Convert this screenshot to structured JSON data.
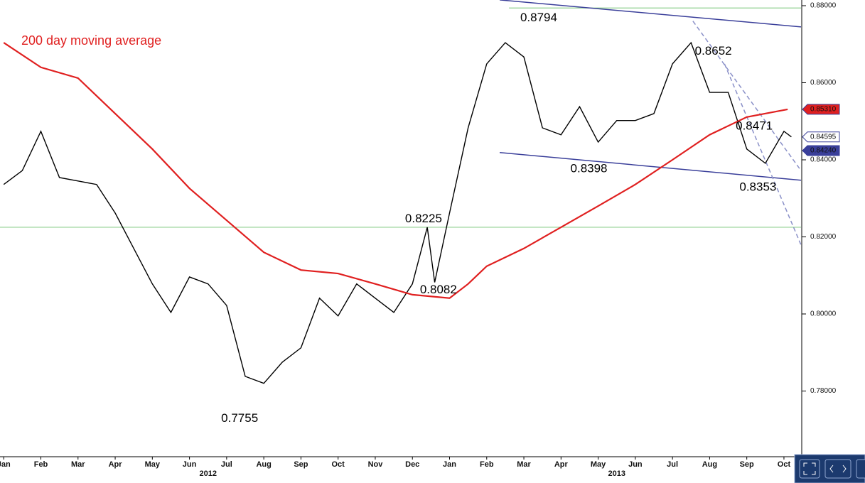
{
  "chart_data": {
    "type": "line",
    "xlim": [
      -0.1,
      21.46
    ],
    "ylim": [
      0.76295,
      0.881475
    ],
    "xticks": [
      {
        "value": 0,
        "label": "Jan"
      },
      {
        "value": 1,
        "label": "Feb"
      },
      {
        "value": 2,
        "label": "Mar"
      },
      {
        "value": 3,
        "label": "Apr"
      },
      {
        "value": 4,
        "label": "May"
      },
      {
        "value": 5,
        "label": "Jun"
      },
      {
        "value": 6,
        "label": "Jul"
      },
      {
        "value": 7,
        "label": "Aug"
      },
      {
        "value": 8,
        "label": "Sep"
      },
      {
        "value": 9,
        "label": "Oct"
      },
      {
        "value": 10,
        "label": "Nov"
      },
      {
        "value": 11,
        "label": "Dec"
      },
      {
        "value": 12,
        "label": "Jan"
      },
      {
        "value": 13,
        "label": "Feb"
      },
      {
        "value": 14,
        "label": "Mar"
      },
      {
        "value": 15,
        "label": "Apr"
      },
      {
        "value": 16,
        "label": "May"
      },
      {
        "value": 17,
        "label": "Jun"
      },
      {
        "value": 18,
        "label": "Jul"
      },
      {
        "value": 19,
        "label": "Aug"
      },
      {
        "value": 20,
        "label": "Sep"
      },
      {
        "value": 21,
        "label": "Oct"
      }
    ],
    "year_labels": [
      {
        "value": 5.5,
        "label": "2012"
      },
      {
        "value": 16.5,
        "label": "2013"
      }
    ],
    "yticks": [
      {
        "value": 0.88,
        "label": "0.88000"
      },
      {
        "value": 0.86,
        "label": "0.86000"
      },
      {
        "value": 0.84,
        "label": "0.84000"
      },
      {
        "value": 0.82,
        "label": "0.82000"
      },
      {
        "value": 0.8,
        "label": "0.80000"
      },
      {
        "value": 0.78,
        "label": "0.78000"
      }
    ],
    "series": [
      {
        "color": "#000000",
        "x": [
          0,
          0.5,
          1,
          1.5,
          2,
          2.5,
          3,
          3.5,
          4,
          4.5,
          5,
          5.5,
          6,
          6.5,
          7,
          7.5,
          8,
          8.5,
          9,
          9.5,
          10,
          10.5,
          11,
          11.4,
          11.6,
          12,
          12.5,
          13,
          13.5,
          14,
          14.5,
          15,
          15.5,
          16,
          16.5,
          17,
          17.5,
          18,
          18.5,
          19,
          19.5,
          20,
          20.5,
          21,
          21.2
        ],
        "values": [
          0.8336,
          0.8372,
          0.8474,
          0.8354,
          0.8345,
          0.8336,
          0.8262,
          0.817,
          0.8078,
          0.8004,
          0.8096,
          0.8078,
          0.8022,
          0.7838,
          0.782,
          0.7875,
          0.7912,
          0.8041,
          0.7995,
          0.8078,
          0.8041,
          0.8004,
          0.8078,
          0.8225,
          0.8082,
          0.8262,
          0.8483,
          0.8649,
          0.8704,
          0.8667,
          0.8483,
          0.8465,
          0.8538,
          0.8446,
          0.8502,
          0.8502,
          0.852,
          0.8649,
          0.8704,
          0.8575,
          0.8575,
          0.8428,
          0.8391,
          0.8474,
          0.84595
        ]
      },
      {
        "name": "200 day moving average",
        "color": "#e02020",
        "x": [
          0,
          1,
          2,
          3,
          4,
          5,
          6,
          7,
          8,
          9,
          10,
          11,
          12,
          12.5,
          13,
          14,
          15,
          16,
          17,
          18,
          19,
          20,
          21.1
        ],
        "values": [
          0.8704,
          0.864,
          0.8612,
          0.852,
          0.8428,
          0.8326,
          0.8243,
          0.816,
          0.8114,
          0.8105,
          0.8078,
          0.805,
          0.8041,
          0.8078,
          0.8124,
          0.817,
          0.8225,
          0.828,
          0.8336,
          0.84,
          0.8465,
          0.8511,
          0.8531
        ]
      }
    ],
    "hlines": [
      {
        "value": 0.8794,
        "color": "#8fcf8f"
      },
      {
        "value": 0.8225,
        "color": "#8fcf8f"
      }
    ],
    "trendlines": [
      {
        "x": [
          13.35,
          21.46
        ],
        "values": [
          0.8815,
          0.8745
        ],
        "color": "#3a3f9a",
        "dashed": false
      },
      {
        "x": [
          13.35,
          21.46
        ],
        "values": [
          0.8419,
          0.8347
        ],
        "color": "#3a3f9a",
        "dashed": false
      },
      {
        "x": [
          18.55,
          21.46
        ],
        "values": [
          0.876,
          0.8372
        ],
        "color": "#8a90c8",
        "dashed": true
      },
      {
        "x": [
          19.4,
          21.46
        ],
        "values": [
          0.8649,
          0.8179
        ],
        "color": "#8a90c8",
        "dashed": true
      }
    ],
    "annotations": [
      {
        "label": "0.8794",
        "x": 14.4,
        "y": 0.8768
      },
      {
        "label": "0.8652",
        "x": 19.1,
        "y": 0.8681
      },
      {
        "label": "0.8471",
        "x": 20.2,
        "y": 0.8487
      },
      {
        "label": "0.8398",
        "x": 15.75,
        "y": 0.8376
      },
      {
        "label": "0.8353",
        "x": 20.3,
        "y": 0.8328
      },
      {
        "label": "0.8225",
        "x": 11.3,
        "y": 0.8246
      },
      {
        "label": "0.8082",
        "x": 11.7,
        "y": 0.8062
      },
      {
        "label": "0.7755",
        "x": 6.35,
        "y": 0.7728
      }
    ],
    "tags": [
      {
        "label": "0.85310",
        "value": 0.8531,
        "color": "#e02020",
        "text_color": "#ffffff"
      },
      {
        "label": "0.84595",
        "value": 0.84595,
        "color": "#ffffff",
        "text_color": "#000000"
      },
      {
        "label": "0.84240",
        "value": 0.8424,
        "color": "#3a3f9a",
        "text_color": "#ffffff"
      }
    ]
  }
}
